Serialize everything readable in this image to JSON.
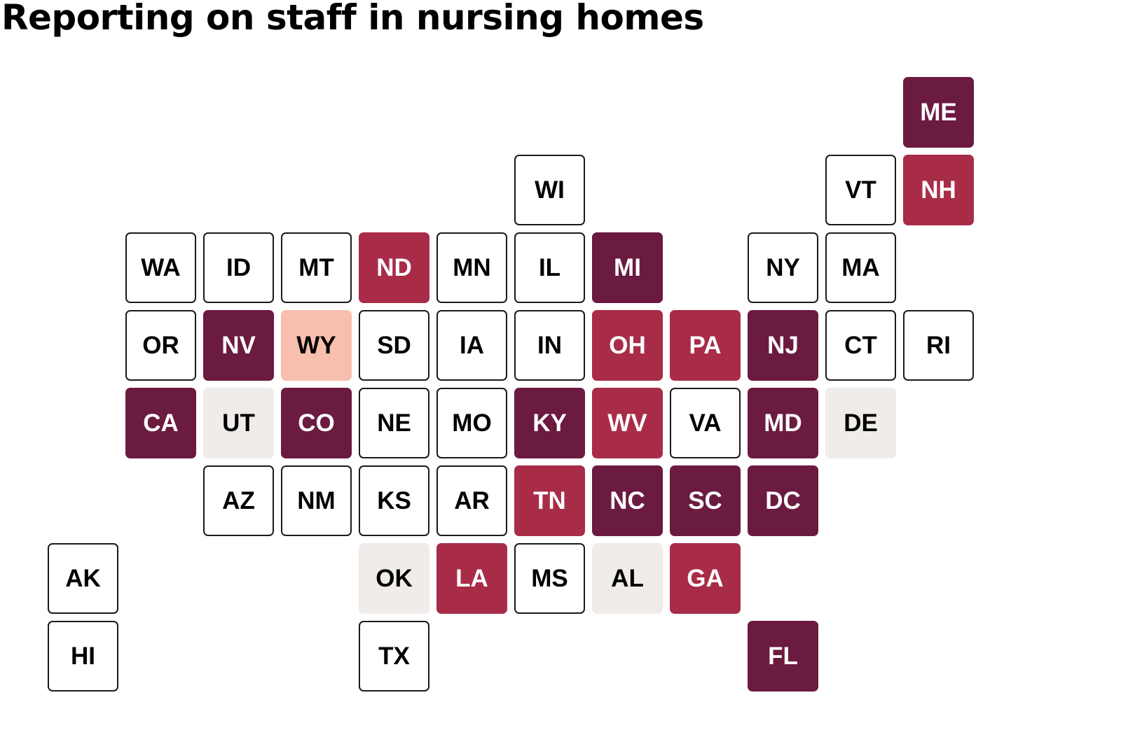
{
  "title": "Reporting on staff in nursing homes",
  "colors": {
    "dark": "#6b1a40",
    "medium": "#a82c48",
    "light": "#f9bfae",
    "gray": "#efecea",
    "none": "#ffffff"
  },
  "states": [
    {
      "abbr": "ME",
      "col": 11,
      "row": 0,
      "category": "dark"
    },
    {
      "abbr": "WI",
      "col": 6,
      "row": 1,
      "category": "none"
    },
    {
      "abbr": "VT",
      "col": 10,
      "row": 1,
      "category": "none"
    },
    {
      "abbr": "NH",
      "col": 11,
      "row": 1,
      "category": "medium"
    },
    {
      "abbr": "WA",
      "col": 1,
      "row": 2,
      "category": "none"
    },
    {
      "abbr": "ID",
      "col": 2,
      "row": 2,
      "category": "none"
    },
    {
      "abbr": "MT",
      "col": 3,
      "row": 2,
      "category": "none"
    },
    {
      "abbr": "ND",
      "col": 4,
      "row": 2,
      "category": "medium"
    },
    {
      "abbr": "MN",
      "col": 5,
      "row": 2,
      "category": "none"
    },
    {
      "abbr": "IL",
      "col": 6,
      "row": 2,
      "category": "none"
    },
    {
      "abbr": "MI",
      "col": 7,
      "row": 2,
      "category": "dark"
    },
    {
      "abbr": "NY",
      "col": 9,
      "row": 2,
      "category": "none"
    },
    {
      "abbr": "MA",
      "col": 10,
      "row": 2,
      "category": "none"
    },
    {
      "abbr": "OR",
      "col": 1,
      "row": 3,
      "category": "none"
    },
    {
      "abbr": "NV",
      "col": 2,
      "row": 3,
      "category": "dark"
    },
    {
      "abbr": "WY",
      "col": 3,
      "row": 3,
      "category": "light"
    },
    {
      "abbr": "SD",
      "col": 4,
      "row": 3,
      "category": "none"
    },
    {
      "abbr": "IA",
      "col": 5,
      "row": 3,
      "category": "none"
    },
    {
      "abbr": "IN",
      "col": 6,
      "row": 3,
      "category": "none"
    },
    {
      "abbr": "OH",
      "col": 7,
      "row": 3,
      "category": "medium"
    },
    {
      "abbr": "PA",
      "col": 8,
      "row": 3,
      "category": "medium"
    },
    {
      "abbr": "NJ",
      "col": 9,
      "row": 3,
      "category": "dark"
    },
    {
      "abbr": "CT",
      "col": 10,
      "row": 3,
      "category": "none"
    },
    {
      "abbr": "RI",
      "col": 11,
      "row": 3,
      "category": "none"
    },
    {
      "abbr": "CA",
      "col": 1,
      "row": 4,
      "category": "dark"
    },
    {
      "abbr": "UT",
      "col": 2,
      "row": 4,
      "category": "gray"
    },
    {
      "abbr": "CO",
      "col": 3,
      "row": 4,
      "category": "dark"
    },
    {
      "abbr": "NE",
      "col": 4,
      "row": 4,
      "category": "none"
    },
    {
      "abbr": "MO",
      "col": 5,
      "row": 4,
      "category": "none"
    },
    {
      "abbr": "KY",
      "col": 6,
      "row": 4,
      "category": "dark"
    },
    {
      "abbr": "WV",
      "col": 7,
      "row": 4,
      "category": "medium"
    },
    {
      "abbr": "VA",
      "col": 8,
      "row": 4,
      "category": "none"
    },
    {
      "abbr": "MD",
      "col": 9,
      "row": 4,
      "category": "dark"
    },
    {
      "abbr": "DE",
      "col": 10,
      "row": 4,
      "category": "gray"
    },
    {
      "abbr": "AZ",
      "col": 2,
      "row": 5,
      "category": "none"
    },
    {
      "abbr": "NM",
      "col": 3,
      "row": 5,
      "category": "none"
    },
    {
      "abbr": "KS",
      "col": 4,
      "row": 5,
      "category": "none"
    },
    {
      "abbr": "AR",
      "col": 5,
      "row": 5,
      "category": "none"
    },
    {
      "abbr": "TN",
      "col": 6,
      "row": 5,
      "category": "medium"
    },
    {
      "abbr": "NC",
      "col": 7,
      "row": 5,
      "category": "dark"
    },
    {
      "abbr": "SC",
      "col": 8,
      "row": 5,
      "category": "dark"
    },
    {
      "abbr": "DC",
      "col": 9,
      "row": 5,
      "category": "dark"
    },
    {
      "abbr": "AK",
      "col": 0,
      "row": 6,
      "category": "none"
    },
    {
      "abbr": "OK",
      "col": 4,
      "row": 6,
      "category": "gray"
    },
    {
      "abbr": "LA",
      "col": 5,
      "row": 6,
      "category": "medium"
    },
    {
      "abbr": "MS",
      "col": 6,
      "row": 6,
      "category": "none"
    },
    {
      "abbr": "AL",
      "col": 7,
      "row": 6,
      "category": "gray"
    },
    {
      "abbr": "GA",
      "col": 8,
      "row": 6,
      "category": "medium"
    },
    {
      "abbr": "HI",
      "col": 0,
      "row": 7,
      "category": "none"
    },
    {
      "abbr": "TX",
      "col": 4,
      "row": 7,
      "category": "none"
    },
    {
      "abbr": "FL",
      "col": 9,
      "row": 7,
      "category": "dark"
    }
  ]
}
